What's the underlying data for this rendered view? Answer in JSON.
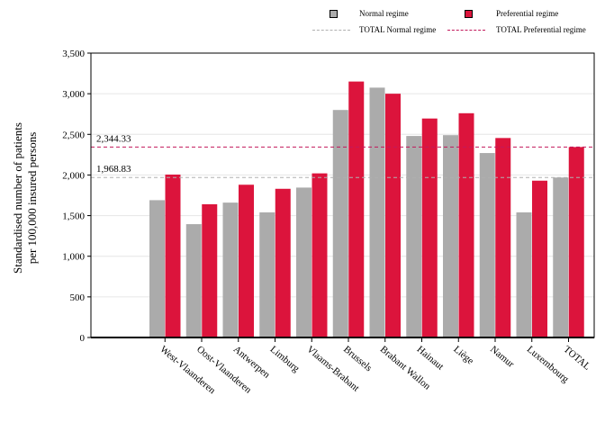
{
  "legend": {
    "normal": "Normal regime",
    "preferential": "Preferential regime",
    "total_normal": "TOTAL Normal regime",
    "total_preferential": "TOTAL Preferential regime"
  },
  "colors": {
    "normal": "#ababab",
    "preferential": "#dc143c",
    "total_normal_line": "#b0b0b0",
    "total_preferential_line": "#c2185b"
  },
  "chart_data": {
    "type": "bar",
    "title": "",
    "xlabel": "",
    "ylabel": "Standardised number of patients per 100,000 insured persons",
    "ylabel_lines": [
      "Standardised number of patients",
      "per 100,000 insured persons"
    ],
    "ylim": [
      0,
      3500
    ],
    "yticks": [
      0,
      500,
      1000,
      1500,
      2000,
      2500,
      3000,
      3500
    ],
    "ytick_labels": [
      "0",
      "500",
      "1,000",
      "1,500",
      "2,000",
      "2,500",
      "3,000",
      "3,500"
    ],
    "grid": true,
    "legend_position": "top",
    "categories": [
      "West-Vlaanderen",
      "Oost-Vlaanderen",
      "Antwerpen",
      "Limburg",
      "Vlaams-Brabant",
      "Brussels",
      "Brabant Wallon",
      "Hainaut",
      "Liège",
      "Namur",
      "Luxembourg",
      "TOTAL"
    ],
    "series": [
      {
        "name": "Normal regime",
        "values": [
          1690,
          1395,
          1660,
          1540,
          1845,
          2800,
          3075,
          2480,
          2490,
          2270,
          1540,
          1968.83
        ]
      },
      {
        "name": "Preferential regime",
        "values": [
          2005,
          1640,
          1880,
          1830,
          2020,
          3150,
          3000,
          2695,
          2760,
          2455,
          1930,
          2344.33
        ]
      }
    ],
    "reference_lines": [
      {
        "name": "TOTAL Normal regime",
        "value": 1968.83,
        "label": "1,968.83"
      },
      {
        "name": "TOTAL Preferential regime",
        "value": 2344.33,
        "label": "2,344.33"
      }
    ]
  }
}
